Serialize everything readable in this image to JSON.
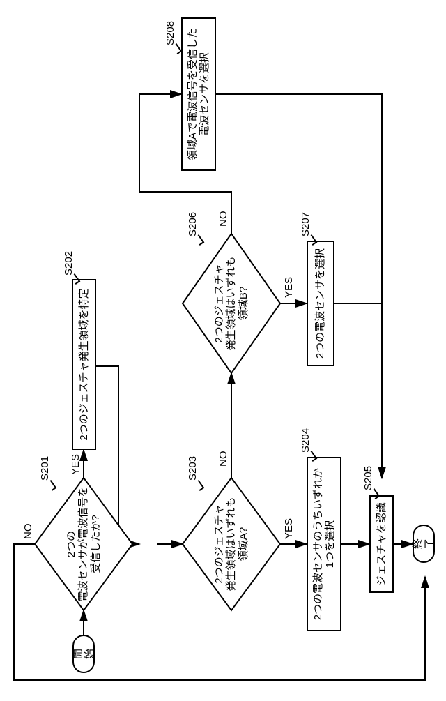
{
  "colors": {
    "stroke": "#000000",
    "bg": "#ffffff"
  },
  "font": {
    "size_pt": 15,
    "family": "sans-serif"
  },
  "terminals": {
    "start": "開始",
    "end": "終了"
  },
  "decisions": {
    "s201": "2つの\n電波センサが電波信号を\n受信したか?",
    "s203": "2つのジェスチャ\n発生領域はいずれも\n領域A?",
    "s206": "2つのジェスチャ\n発生領域はいずれも\n領域B?"
  },
  "processes": {
    "s202": "2つのジェスチャ発生領域を特定",
    "s204": "2つの電波センサのうちいずれか\n1つを選択",
    "s207": "2つの電波センサを選択",
    "s208": "領域Aで電波信号を受信した\n電波センサを選択",
    "s205": "ジェスチャを認識"
  },
  "steps": {
    "s201": "S201",
    "s202": "S202",
    "s203": "S203",
    "s204": "S204",
    "s205": "S205",
    "s206": "S206",
    "s207": "S207",
    "s208": "S208"
  },
  "edges": {
    "yes": "YES",
    "no": "NO"
  }
}
